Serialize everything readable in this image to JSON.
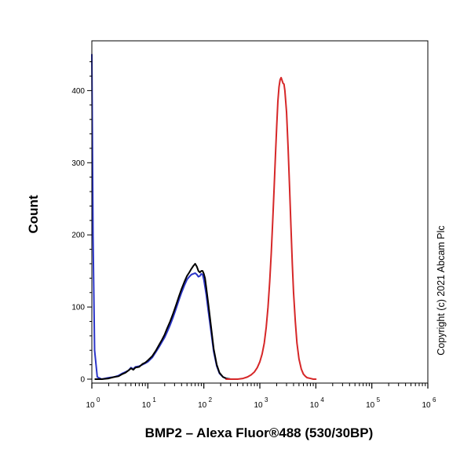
{
  "chart_data": {
    "type": "line",
    "title": "",
    "xlabel": "BMP2 – Alexa Fluor®488 (530/30BP)",
    "ylabel": "Count",
    "xscale": "log",
    "xlim": [
      1,
      1000000
    ],
    "ylim": [
      0,
      450
    ],
    "grid": false,
    "legend": "none",
    "copyright": "Copyright (c) 2021 Abcam Plc",
    "x_ticks": [
      {
        "base": "10",
        "exp": "0"
      },
      {
        "base": "10",
        "exp": "1"
      },
      {
        "base": "10",
        "exp": "2"
      },
      {
        "base": "10",
        "exp": "3"
      },
      {
        "base": "10",
        "exp": "4"
      },
      {
        "base": "10",
        "exp": "5"
      },
      {
        "base": "10",
        "exp": "6"
      }
    ],
    "y_ticks": [
      "0",
      "100",
      "200",
      "300",
      "400"
    ],
    "series": [
      {
        "color": "#2b35c8",
        "points": [
          [
            1,
            450
          ],
          [
            1.05,
            200
          ],
          [
            1.12,
            40
          ],
          [
            1.25,
            3
          ],
          [
            1.5,
            0
          ],
          [
            2,
            2
          ],
          [
            2.5,
            3
          ],
          [
            3,
            5
          ],
          [
            3.5,
            8
          ],
          [
            4,
            10
          ],
          [
            4.5,
            12
          ],
          [
            5,
            16
          ],
          [
            5.5,
            14
          ],
          [
            6,
            17
          ],
          [
            7,
            18
          ],
          [
            8,
            20
          ],
          [
            9,
            22
          ],
          [
            10,
            24
          ],
          [
            12,
            30
          ],
          [
            14,
            38
          ],
          [
            16,
            45
          ],
          [
            18,
            52
          ],
          [
            20,
            58
          ],
          [
            22,
            65
          ],
          [
            25,
            75
          ],
          [
            28,
            85
          ],
          [
            32,
            98
          ],
          [
            36,
            110
          ],
          [
            40,
            120
          ],
          [
            45,
            130
          ],
          [
            50,
            138
          ],
          [
            55,
            142
          ],
          [
            60,
            145
          ],
          [
            65,
            146
          ],
          [
            70,
            147
          ],
          [
            75,
            145
          ],
          [
            80,
            142
          ],
          [
            85,
            143
          ],
          [
            90,
            146
          ],
          [
            95,
            145
          ],
          [
            100,
            138
          ],
          [
            110,
            118
          ],
          [
            120,
            95
          ],
          [
            135,
            65
          ],
          [
            150,
            38
          ],
          [
            170,
            18
          ],
          [
            190,
            8
          ],
          [
            220,
            3
          ],
          [
            250,
            1
          ],
          [
            300,
            0
          ]
        ]
      },
      {
        "color": "#000000",
        "points": [
          [
            1.15,
            0
          ],
          [
            1.5,
            0
          ],
          [
            2,
            1
          ],
          [
            2.5,
            3
          ],
          [
            3,
            4
          ],
          [
            3.5,
            7
          ],
          [
            4,
            9
          ],
          [
            4.5,
            12
          ],
          [
            5,
            15
          ],
          [
            5.5,
            13
          ],
          [
            6,
            16
          ],
          [
            7,
            17
          ],
          [
            8,
            21
          ],
          [
            9,
            23
          ],
          [
            10,
            26
          ],
          [
            12,
            32
          ],
          [
            14,
            40
          ],
          [
            16,
            48
          ],
          [
            18,
            55
          ],
          [
            20,
            62
          ],
          [
            22,
            70
          ],
          [
            25,
            80
          ],
          [
            28,
            90
          ],
          [
            32,
            103
          ],
          [
            36,
            115
          ],
          [
            40,
            125
          ],
          [
            45,
            135
          ],
          [
            50,
            143
          ],
          [
            55,
            148
          ],
          [
            60,
            153
          ],
          [
            65,
            157
          ],
          [
            70,
            160
          ],
          [
            75,
            156
          ],
          [
            80,
            150
          ],
          [
            85,
            148
          ],
          [
            90,
            150
          ],
          [
            95,
            150
          ],
          [
            100,
            146
          ],
          [
            105,
            140
          ],
          [
            110,
            128
          ],
          [
            120,
            105
          ],
          [
            135,
            72
          ],
          [
            150,
            42
          ],
          [
            170,
            20
          ],
          [
            190,
            9
          ],
          [
            220,
            3
          ],
          [
            250,
            1
          ],
          [
            300,
            0
          ]
        ]
      },
      {
        "color": "#d62728",
        "points": [
          [
            250,
            0
          ],
          [
            400,
            0
          ],
          [
            500,
            1
          ],
          [
            600,
            3
          ],
          [
            700,
            6
          ],
          [
            800,
            10
          ],
          [
            900,
            16
          ],
          [
            1000,
            24
          ],
          [
            1100,
            35
          ],
          [
            1200,
            50
          ],
          [
            1300,
            72
          ],
          [
            1400,
            100
          ],
          [
            1500,
            135
          ],
          [
            1600,
            175
          ],
          [
            1700,
            220
          ],
          [
            1800,
            265
          ],
          [
            1900,
            310
          ],
          [
            2000,
            350
          ],
          [
            2100,
            385
          ],
          [
            2200,
            405
          ],
          [
            2300,
            415
          ],
          [
            2400,
            418
          ],
          [
            2500,
            414
          ],
          [
            2600,
            410
          ],
          [
            2700,
            409
          ],
          [
            2800,
            400
          ],
          [
            3000,
            370
          ],
          [
            3200,
            320
          ],
          [
            3400,
            265
          ],
          [
            3600,
            210
          ],
          [
            3800,
            160
          ],
          [
            4000,
            120
          ],
          [
            4300,
            80
          ],
          [
            4600,
            50
          ],
          [
            5000,
            28
          ],
          [
            5500,
            14
          ],
          [
            6000,
            7
          ],
          [
            6500,
            4
          ],
          [
            7000,
            2
          ],
          [
            8000,
            1
          ],
          [
            9000,
            0
          ],
          [
            10000,
            0
          ]
        ]
      }
    ]
  }
}
